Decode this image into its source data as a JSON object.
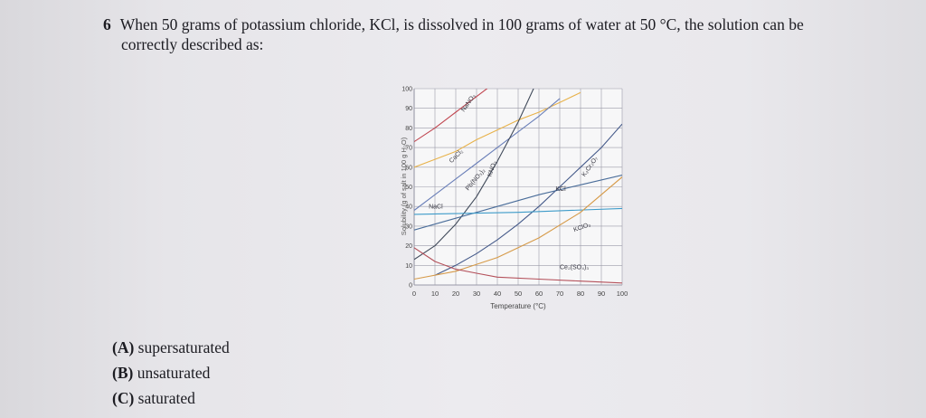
{
  "question": {
    "number": "6",
    "line1": "When 50 grams of potassium chloride, KCl, is dissolved in 100 grams of water at 50 °C, the solution can be",
    "line2": "correctly described as:"
  },
  "choices": [
    {
      "letter": "(A)",
      "text": "supersaturated"
    },
    {
      "letter": "(B)",
      "text": "unsaturated"
    },
    {
      "letter": "(C)",
      "text": "saturated"
    }
  ],
  "chart_data": {
    "type": "line",
    "xlabel": "Temperature (°C)",
    "ylabel": "Solubility (g of salt in 100 g H₂O)",
    "xlim": [
      0,
      100
    ],
    "ylim": [
      0,
      100
    ],
    "x_ticks": [
      "0",
      "10",
      "20",
      "30",
      "40",
      "50",
      "60",
      "70",
      "80",
      "90",
      "100"
    ],
    "y_ticks": [
      "0",
      "10",
      "20",
      "30",
      "40",
      "50",
      "60",
      "70",
      "80",
      "90",
      "100"
    ],
    "grid": true,
    "colors": {
      "grid": "#9a9aa8",
      "axis": "#555560"
    },
    "series": [
      {
        "name": "NaNO₃",
        "color": "#c0454f",
        "x": [
          0,
          10,
          20,
          30,
          40
        ],
        "y": [
          73,
          80,
          88,
          96,
          104
        ]
      },
      {
        "name": "CaCl₂",
        "color": "#e8b24a",
        "x": [
          0,
          10,
          20,
          30,
          40,
          50,
          60,
          70,
          80
        ],
        "y": [
          60,
          64,
          68,
          74,
          79,
          84,
          88,
          93,
          98
        ]
      },
      {
        "name": "Pb(NO₃)₂",
        "color": "#6a7fb8",
        "x": [
          0,
          10,
          20,
          30,
          40,
          50,
          60,
          70
        ],
        "y": [
          38,
          46,
          54,
          62,
          70,
          78,
          86,
          95
        ]
      },
      {
        "name": "KNO₃",
        "color": "#404a5a",
        "x": [
          0,
          10,
          20,
          30,
          40,
          50,
          60
        ],
        "y": [
          13,
          20,
          31,
          45,
          63,
          83,
          106
        ]
      },
      {
        "name": "K₂Cr₂O₇",
        "color": "#455a8a",
        "x": [
          10,
          20,
          30,
          40,
          50,
          60,
          70,
          80,
          90,
          100
        ],
        "y": [
          5,
          10,
          16,
          23,
          31,
          40,
          50,
          60,
          70,
          82
        ]
      },
      {
        "name": "KCl",
        "color": "#4a6d9a",
        "x": [
          0,
          20,
          40,
          60,
          80,
          100
        ],
        "y": [
          28,
          34,
          40,
          46,
          51,
          56
        ]
      },
      {
        "name": "NaCl",
        "color": "#3d9bc9",
        "x": [
          0,
          50,
          100
        ],
        "y": [
          36,
          37,
          39
        ]
      },
      {
        "name": "KClO₃",
        "color": "#d69a48",
        "x": [
          0,
          20,
          40,
          60,
          80,
          100
        ],
        "y": [
          3,
          7,
          14,
          24,
          37,
          55
        ]
      },
      {
        "name": "Ce₂(SO₄)₃",
        "color": "#b4505a",
        "x": [
          0,
          10,
          20,
          30,
          40,
          60,
          80,
          100
        ],
        "y": [
          19,
          12,
          8,
          6,
          4,
          3,
          2,
          1
        ]
      }
    ]
  }
}
